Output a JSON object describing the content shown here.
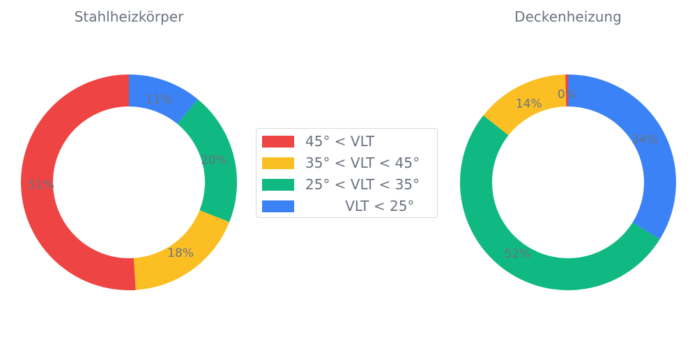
{
  "chart_data": [
    {
      "type": "pie",
      "title": "Stahlheizkörper",
      "labels": [
        "VLT < 25°",
        "25° < VLT < 35°",
        "35° < VLT < 45°",
        "45° < VLT"
      ],
      "values": [
        11,
        20,
        18,
        51
      ],
      "value_labels": [
        "11%",
        "20%",
        "18%",
        "51%"
      ],
      "colors": [
        "#3b82f6",
        "#10b981",
        "#fbbf24",
        "#ef4444"
      ],
      "donut": true,
      "start": "12 o'clock",
      "direction": "clockwise"
    },
    {
      "type": "pie",
      "title": "Deckenheizung",
      "labels": [
        "VLT < 25°",
        "25° < VLT < 35°",
        "35° < VLT < 45°",
        "45° < VLT"
      ],
      "values": [
        34,
        52,
        14,
        0.4
      ],
      "value_labels": [
        "34%",
        "52%",
        "14%",
        "0%"
      ],
      "colors": [
        "#3b82f6",
        "#10b981",
        "#fbbf24",
        "#ef4444"
      ],
      "donut": true,
      "start": "12 o'clock",
      "direction": "clockwise"
    }
  ],
  "legend": {
    "placement": "center",
    "items": [
      {
        "label": "45° < VLT",
        "color": "#ef4444"
      },
      {
        "label": "35° < VLT < 45°",
        "color": "#fbbf24"
      },
      {
        "label": "25° < VLT < 35°",
        "color": "#10b981"
      },
      {
        "label": "         VLT < 25°",
        "color": "#3b82f6"
      }
    ]
  }
}
